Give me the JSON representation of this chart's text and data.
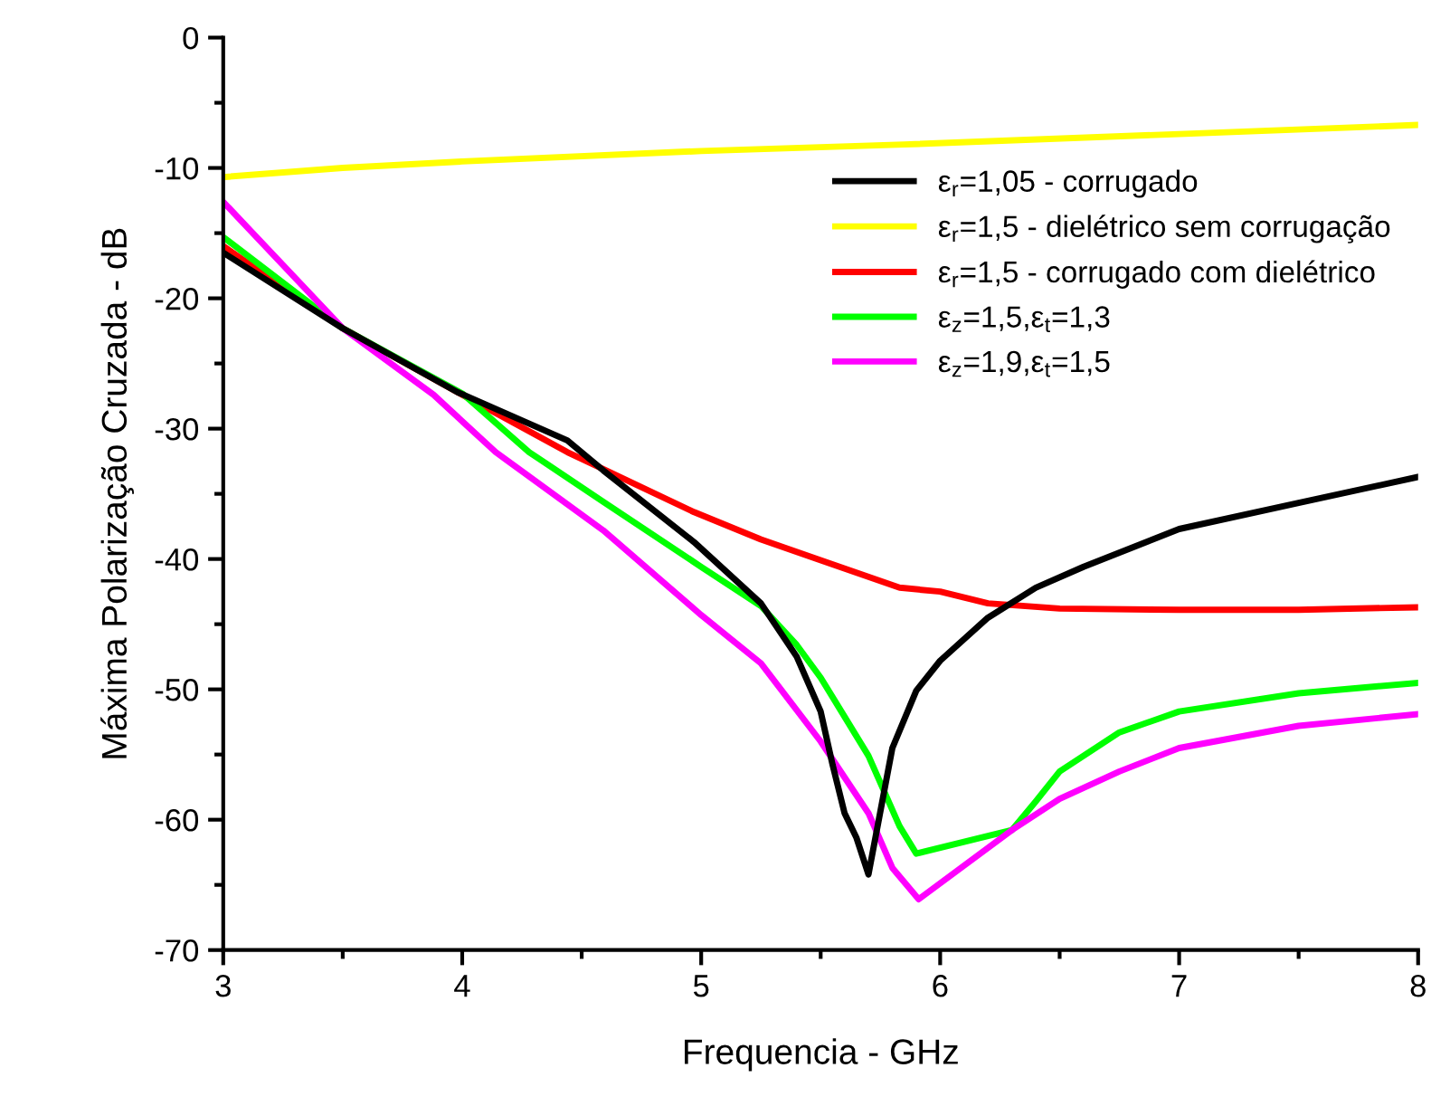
{
  "chart_data": {
    "type": "line",
    "xlabel": "Frequencia - GHz",
    "ylabel": "Máxima Polarização Cruzada - dB",
    "xlim": [
      3,
      8
    ],
    "ylim": [
      -70,
      0
    ],
    "xticks": [
      3,
      4,
      5,
      6,
      7,
      8
    ],
    "yticks": [
      -70,
      -60,
      -50,
      -40,
      -30,
      -20,
      -10,
      0
    ],
    "grid": false,
    "legend": "top right",
    "marker": "none",
    "line_style": "solid",
    "series": [
      {
        "name": "ε$_{r}$=1,05 - corrugado",
        "color": "#000000",
        "x": [
          3,
          3.5,
          3.98,
          4.44,
          4.59,
          4.97,
          5.25,
          5.4,
          5.5,
          5.55,
          5.6,
          5.65,
          5.7,
          5.8,
          5.9,
          6.0,
          6.2,
          6.4,
          6.6,
          7.0,
          7.5,
          8
        ],
        "values": [
          -16.5,
          -22.3,
          -27.2,
          -30.9,
          -33.2,
          -38.7,
          -43.4,
          -47.5,
          -51.7,
          -55.8,
          -59.5,
          -61.4,
          -64.2,
          -54.5,
          -50.1,
          -47.8,
          -44.5,
          -42.2,
          -40.6,
          -37.7,
          -35.7,
          -33.7
        ]
      },
      {
        "name": "ε$_{r}$=1,5 - dielétrico sem corrugação",
        "color": "#ffff00",
        "x": [
          3,
          3.5,
          4,
          5,
          5.85,
          7,
          8
        ],
        "values": [
          -10.7,
          -10.0,
          -9.5,
          -8.7,
          -8.2,
          -7.4,
          -6.7
        ]
      },
      {
        "name": "ε$_{r}$=1,5 - corrugado com dielétrico",
        "color": "#ff0000",
        "x": [
          3,
          3.5,
          3.98,
          4.44,
          4.97,
          5.25,
          5.5,
          5.83,
          6.0,
          6.2,
          6.5,
          7,
          7.5,
          8
        ],
        "values": [
          -16.0,
          -22.3,
          -27.2,
          -31.8,
          -36.4,
          -38.5,
          -40.1,
          -42.2,
          -42.5,
          -43.4,
          -43.8,
          -43.9,
          -43.9,
          -43.7
        ]
      },
      {
        "name": "ε$_{z}$=1,5,ε$_{t}$=1,3",
        "color": "#00ff00",
        "x": [
          3,
          3.5,
          4,
          4.28,
          4.59,
          5,
          5.25,
          5.4,
          5.5,
          5.6,
          5.7,
          5.83,
          5.9,
          6.3,
          6.4,
          6.5,
          6.75,
          7,
          7.5,
          8
        ],
        "values": [
          -15.3,
          -22.3,
          -27.3,
          -31.8,
          -35.6,
          -40.6,
          -43.6,
          -46.6,
          -49.1,
          -52.1,
          -55.1,
          -60.5,
          -62.6,
          -60.8,
          -58.6,
          -56.3,
          -53.3,
          -51.7,
          -50.3,
          -49.5
        ]
      },
      {
        "name": "ε$_{z}$=1,9,ε$_{t}$=1,5",
        "color": "#ff00ff",
        "x": [
          3,
          3.5,
          3.88,
          4.14,
          4.59,
          5,
          5.25,
          5.5,
          5.7,
          5.8,
          5.91,
          6.3,
          6.5,
          6.75,
          7,
          7.5,
          8
        ],
        "values": [
          -12.6,
          -22.3,
          -27.4,
          -31.8,
          -37.8,
          -44.3,
          -48.0,
          -54.0,
          -59.5,
          -63.7,
          -66.1,
          -60.8,
          -58.4,
          -56.3,
          -54.5,
          -52.8,
          -51.9
        ]
      }
    ]
  }
}
